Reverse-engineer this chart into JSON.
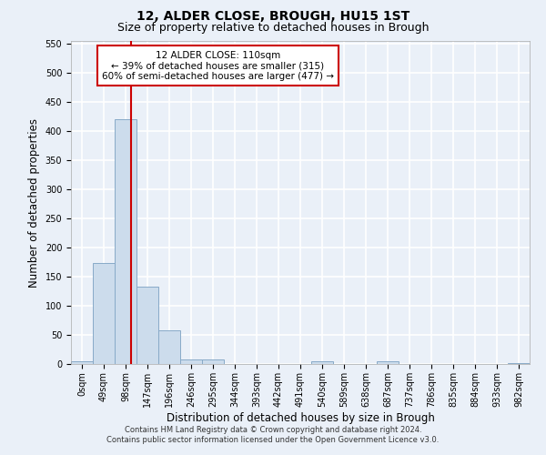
{
  "title": "12, ALDER CLOSE, BROUGH, HU15 1ST",
  "subtitle": "Size of property relative to detached houses in Brough",
  "xlabel": "Distribution of detached houses by size in Brough",
  "ylabel": "Number of detached properties",
  "bin_labels": [
    "0sqm",
    "49sqm",
    "98sqm",
    "147sqm",
    "196sqm",
    "246sqm",
    "295sqm",
    "344sqm",
    "393sqm",
    "442sqm",
    "491sqm",
    "540sqm",
    "589sqm",
    "638sqm",
    "687sqm",
    "737sqm",
    "786sqm",
    "835sqm",
    "884sqm",
    "933sqm",
    "982sqm"
  ],
  "bar_heights": [
    5,
    173,
    420,
    133,
    58,
    8,
    8,
    0,
    0,
    0,
    0,
    5,
    0,
    0,
    5,
    0,
    0,
    0,
    0,
    0,
    2
  ],
  "bar_color": "#ccdcec",
  "bar_edge_color": "#88aac8",
  "background_color": "#eaf0f8",
  "grid_color": "#ffffff",
  "property_line_x": 2.24,
  "property_line_color": "#cc0000",
  "annotation_text": "12 ALDER CLOSE: 110sqm\n← 39% of detached houses are smaller (315)\n60% of semi-detached houses are larger (477) →",
  "annotation_box_color": "#cc0000",
  "annotation_fill": "#ffffff",
  "ylim": [
    0,
    555
  ],
  "yticks": [
    0,
    50,
    100,
    150,
    200,
    250,
    300,
    350,
    400,
    450,
    500,
    550
  ],
  "footnote": "Contains HM Land Registry data © Crown copyright and database right 2024.\nContains public sector information licensed under the Open Government Licence v3.0.",
  "title_fontsize": 10,
  "subtitle_fontsize": 9,
  "label_fontsize": 8.5,
  "tick_fontsize": 7,
  "annotation_fontsize": 7.5,
  "footnote_fontsize": 6
}
